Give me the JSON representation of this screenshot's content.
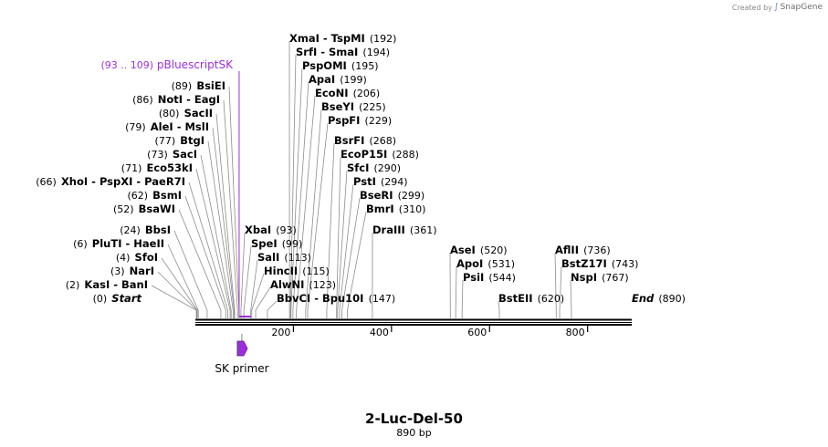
{
  "credit": {
    "prefix": "Created by",
    "brand": "SnapGene"
  },
  "sequence": {
    "name": "2-Luc-Del-50",
    "length_label": "890 bp",
    "length_bp": 890
  },
  "axis": {
    "ticks": [
      200,
      400,
      600,
      800
    ]
  },
  "primer_binding": {
    "label": "pBluescriptSK",
    "range": "(93 .. 109)",
    "start": 93,
    "end": 109,
    "color": "#9b30d9"
  },
  "primer": {
    "label": "SK primer",
    "color": "#9b30d9"
  },
  "features": [
    {
      "pos": 0,
      "posLabel": "(0)",
      "name": "Start",
      "italic": true
    },
    {
      "pos": 2,
      "posLabel": "(2)",
      "name": "KasI  - BanI"
    },
    {
      "pos": 3,
      "posLabel": "(3)",
      "name": "NarI"
    },
    {
      "pos": 4,
      "posLabel": "(4)",
      "name": "SfoI"
    },
    {
      "pos": 6,
      "posLabel": "(6)",
      "name": "PluTI  - HaeII"
    },
    {
      "pos": 24,
      "posLabel": "(24)",
      "name": "BbsI"
    },
    {
      "pos": 52,
      "posLabel": "(52)",
      "name": "BsaWI"
    },
    {
      "pos": 62,
      "posLabel": "(62)",
      "name": "BsmI"
    },
    {
      "pos": 66,
      "posLabel": "(66)",
      "name": "XhoI  - PspXI  - PaeR7I"
    },
    {
      "pos": 71,
      "posLabel": "(71)",
      "name": "Eco53kI"
    },
    {
      "pos": 73,
      "posLabel": "(73)",
      "name": "SacI"
    },
    {
      "pos": 77,
      "posLabel": "(77)",
      "name": "BtgI"
    },
    {
      "pos": 79,
      "posLabel": "(79)",
      "name": "AleI  - MslI"
    },
    {
      "pos": 80,
      "posLabel": "(80)",
      "name": "SacII"
    },
    {
      "pos": 86,
      "posLabel": "(86)",
      "name": "NotI  - EagI"
    },
    {
      "pos": 89,
      "posLabel": "(89)",
      "name": "BsiEI"
    },
    {
      "pos": 93,
      "posLabel": "(93)",
      "name": "XbaI"
    },
    {
      "pos": 99,
      "posLabel": "(99)",
      "name": "SpeI"
    },
    {
      "pos": 113,
      "posLabel": "(113)",
      "name": "SalI"
    },
    {
      "pos": 115,
      "posLabel": "(115)",
      "name": "HincII"
    },
    {
      "pos": 123,
      "posLabel": "(123)",
      "name": "AlwNI"
    },
    {
      "pos": 147,
      "posLabel": "(147)",
      "name": "BbvCI  -  Bpu10I"
    },
    {
      "pos": 192,
      "posLabel": "(192)",
      "name": "XmaI  - TspMI"
    },
    {
      "pos": 194,
      "posLabel": "(194)",
      "name": "SrfI  - SmaI"
    },
    {
      "pos": 195,
      "posLabel": "(195)",
      "name": "PspOMI"
    },
    {
      "pos": 199,
      "posLabel": "(199)",
      "name": "ApaI"
    },
    {
      "pos": 206,
      "posLabel": "(206)",
      "name": "EcoNI"
    },
    {
      "pos": 225,
      "posLabel": "(225)",
      "name": "BseYI"
    },
    {
      "pos": 229,
      "posLabel": "(229)",
      "name": "PspFI"
    },
    {
      "pos": 268,
      "posLabel": "(268)",
      "name": "BsrFI"
    },
    {
      "pos": 288,
      "posLabel": "(288)",
      "name": "EcoP15I"
    },
    {
      "pos": 290,
      "posLabel": "(290)",
      "name": "SfcI"
    },
    {
      "pos": 294,
      "posLabel": "(294)",
      "name": "PstI"
    },
    {
      "pos": 299,
      "posLabel": "(299)",
      "name": "BseRI"
    },
    {
      "pos": 310,
      "posLabel": "(310)",
      "name": "BmrI"
    },
    {
      "pos": 361,
      "posLabel": "(361)",
      "name": "DraIII"
    },
    {
      "pos": 520,
      "posLabel": "(520)",
      "name": "AseI"
    },
    {
      "pos": 531,
      "posLabel": "(531)",
      "name": "ApoI"
    },
    {
      "pos": 544,
      "posLabel": "(544)",
      "name": "PsiI"
    },
    {
      "pos": 620,
      "posLabel": "(620)",
      "name": "BstEII"
    },
    {
      "pos": 736,
      "posLabel": "(736)",
      "name": "AflII"
    },
    {
      "pos": 743,
      "posLabel": "(743)",
      "name": "BstZ17I"
    },
    {
      "pos": 767,
      "posLabel": "(767)",
      "name": "NspI"
    },
    {
      "pos": 890,
      "posLabel": "(890)",
      "name": "End",
      "italic": true
    }
  ]
}
